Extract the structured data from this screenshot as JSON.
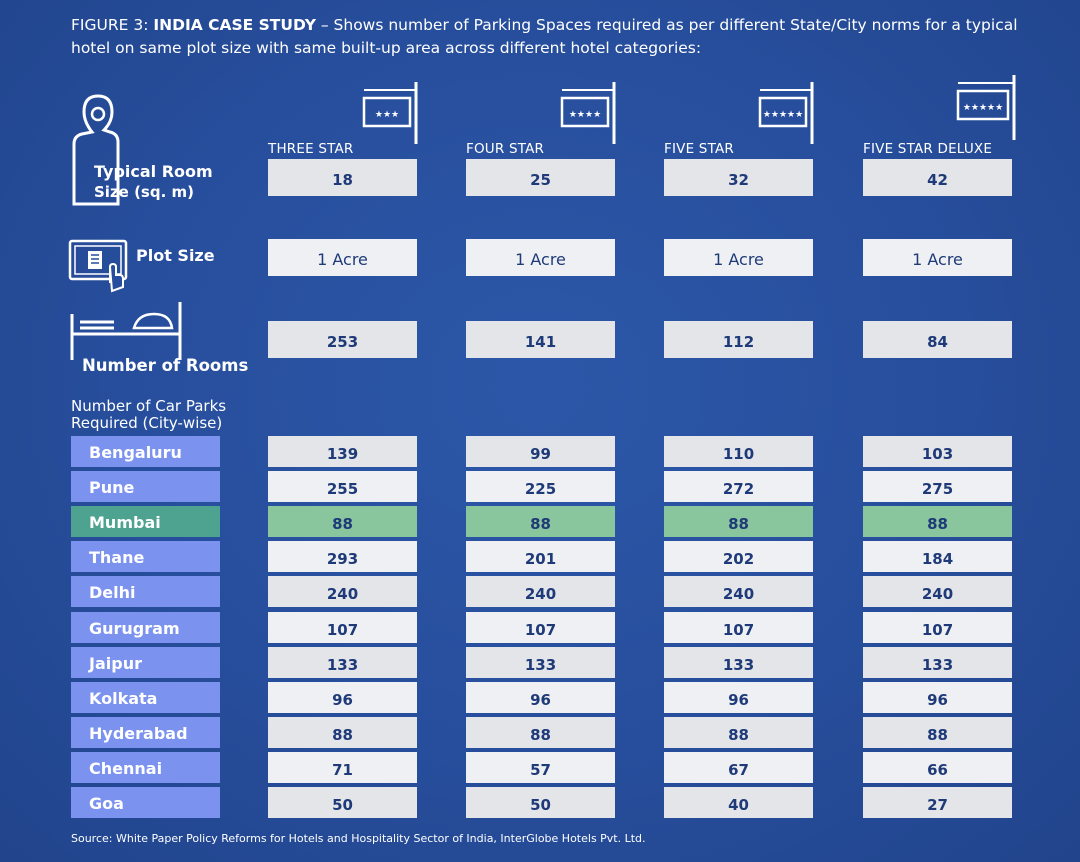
{
  "title": {
    "prefix": "FIGURE 3: ",
    "bold": "INDIA CASE STUDY",
    "rest": " – Shows number of Parking Spaces required as per different State/City norms for a typical hotel on same plot size with same built-up area across different hotel categories:"
  },
  "categories": [
    {
      "label": "THREE STAR",
      "stars": "★★★"
    },
    {
      "label": "FOUR STAR",
      "stars": "★★★★"
    },
    {
      "label": "FIVE STAR",
      "stars": "★★★★★"
    },
    {
      "label": "FIVE STAR DELUXE",
      "stars": "★★★★★"
    }
  ],
  "rows": {
    "room_size": {
      "label_line1": "Typical Room",
      "label_line2": "Size (sq. m)",
      "values": [
        "18",
        "25",
        "32",
        "42"
      ]
    },
    "plot_size": {
      "label": "Plot Size",
      "values": [
        "1 Acre",
        "1 Acre",
        "1 Acre",
        "1 Acre"
      ]
    },
    "rooms": {
      "label": "Number of Rooms",
      "values": [
        "253",
        "141",
        "112",
        "84"
      ]
    }
  },
  "carparks_label_line1": "Number of Car Parks",
  "carparks_label_line2": "Required (City-wise)",
  "highlight_color": "#8ac69d",
  "city_color": "#7b93ef",
  "highlight_city_color": "#4da38f",
  "chart_data": {
    "type": "table",
    "columns": [
      "THREE STAR",
      "FOUR STAR",
      "FIVE STAR",
      "FIVE STAR DELUXE"
    ],
    "highlight_city": "Mumbai",
    "cities": [
      {
        "name": "Bengaluru",
        "values": [
          139,
          99,
          110,
          103
        ]
      },
      {
        "name": "Pune",
        "values": [
          255,
          225,
          272,
          275
        ]
      },
      {
        "name": "Mumbai",
        "values": [
          88,
          88,
          88,
          88
        ]
      },
      {
        "name": "Thane",
        "values": [
          293,
          201,
          202,
          184
        ]
      },
      {
        "name": "Delhi",
        "values": [
          240,
          240,
          240,
          240
        ]
      },
      {
        "name": "Gurugram",
        "values": [
          107,
          107,
          107,
          107
        ]
      },
      {
        "name": "Jaipur",
        "values": [
          133,
          133,
          133,
          133
        ]
      },
      {
        "name": "Kolkata",
        "values": [
          96,
          96,
          96,
          96
        ]
      },
      {
        "name": "Hyderabad",
        "values": [
          88,
          88,
          88,
          88
        ]
      },
      {
        "name": "Chennai",
        "values": [
          71,
          57,
          67,
          66
        ]
      },
      {
        "name": "Goa",
        "values": [
          50,
          50,
          40,
          27
        ]
      }
    ]
  },
  "source": "Source: White Paper Policy Reforms for Hotels and Hospitality Sector of India, InterGlobe Hotels Pvt. Ltd.",
  "icons": {
    "door_hanger": "door-hanger-icon",
    "plot": "plot-map-icon",
    "bed": "bed-icon",
    "sign": "hanging-sign-icon"
  }
}
